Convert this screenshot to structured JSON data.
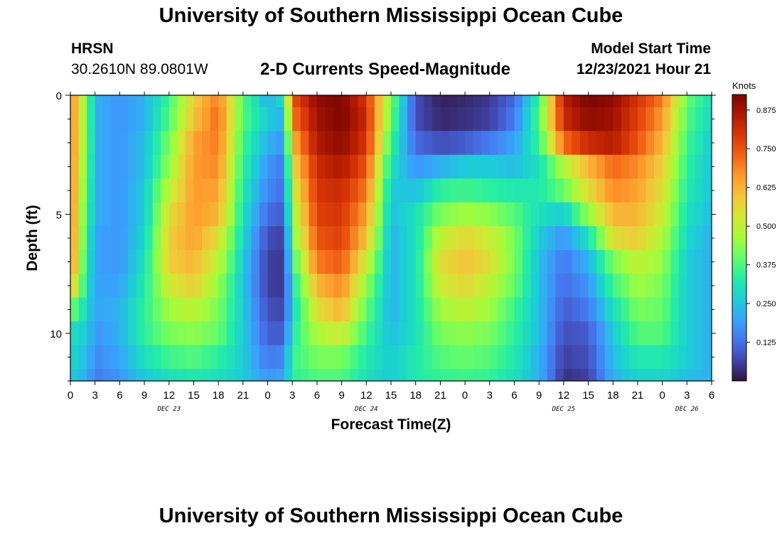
{
  "header": {
    "title": "University of Southern Mississippi Ocean Cube",
    "station": "HRSN",
    "location": "30.2610N  89.0801W",
    "plot_title": "2-D Currents Speed-Magnitude",
    "model_start_label": "Model Start Time",
    "model_start_value": "12/23/2021 Hour 21"
  },
  "footer": {
    "title_repeat": "University of Southern Mississippi Ocean Cube"
  },
  "chart_data": {
    "type": "heatmap",
    "title": "2-D Currents Speed-Magnitude",
    "xlabel": "Forecast Time(Z)",
    "ylabel": "Depth (ft)",
    "x_tick_labels": [
      "0",
      "3",
      "6",
      "9",
      "12",
      "15",
      "18",
      "21",
      "0",
      "3",
      "6",
      "9",
      "12",
      "15",
      "18",
      "21",
      "0",
      "3",
      "6",
      "9",
      "12",
      "15",
      "18",
      "21",
      "0",
      "3",
      "6"
    ],
    "day_labels": [
      {
        "label": "DEC 23",
        "hour": 12
      },
      {
        "label": "DEC 24",
        "hour": 36
      },
      {
        "label": "DEC 25",
        "hour": 60
      },
      {
        "label": "DEC 26",
        "hour": 75
      }
    ],
    "x_range_hours": [
      0,
      78
    ],
    "y_tick_labels": [
      "0",
      "5",
      "10"
    ],
    "y_tick_values": [
      0,
      5,
      10
    ],
    "ylim": [
      0,
      12
    ],
    "y_inverted": true,
    "colorbar": {
      "unit": "Knots",
      "ticks": [
        "0.875",
        "0.750",
        "0.625",
        "0.500",
        "0.375",
        "0.250",
        "0.125"
      ],
      "tick_values": [
        0.875,
        0.75,
        0.625,
        0.5,
        0.375,
        0.25,
        0.125
      ],
      "range": [
        0,
        0.925
      ],
      "colors": [
        "#30123b",
        "#4145ab",
        "#4675ed",
        "#39a2fc",
        "#1bcfd4",
        "#24eca6",
        "#61fc6c",
        "#a4fc3b",
        "#d1e834",
        "#f3c63a",
        "#fe9b2d",
        "#f36315",
        "#d93806",
        "#b11901",
        "#7a0402"
      ]
    },
    "depth_rows_ft": [
      0,
      1,
      2,
      3,
      4,
      5,
      6,
      7,
      8,
      9,
      10,
      11,
      12
    ],
    "time_nodes_hours": [
      0,
      2,
      3,
      6,
      9,
      12,
      15,
      18,
      21,
      24,
      26,
      27,
      30,
      33,
      36,
      39,
      42,
      45,
      48,
      51,
      54,
      57,
      60,
      63,
      66,
      69,
      72,
      75,
      78
    ],
    "speed_knots_by_depth": [
      [
        0.7,
        0.42,
        0.22,
        0.18,
        0.22,
        0.36,
        0.58,
        0.7,
        0.38,
        0.22,
        0.3,
        0.75,
        0.9,
        0.92,
        0.8,
        0.42,
        0.08,
        0.02,
        0.03,
        0.05,
        0.12,
        0.35,
        0.85,
        0.92,
        0.9,
        0.8,
        0.7,
        0.4,
        0.3
      ],
      [
        0.7,
        0.42,
        0.22,
        0.18,
        0.22,
        0.38,
        0.6,
        0.72,
        0.38,
        0.26,
        0.22,
        0.7,
        0.88,
        0.92,
        0.82,
        0.4,
        0.08,
        0.03,
        0.04,
        0.06,
        0.14,
        0.38,
        0.82,
        0.9,
        0.88,
        0.78,
        0.66,
        0.38,
        0.28
      ],
      [
        0.7,
        0.42,
        0.22,
        0.18,
        0.24,
        0.42,
        0.65,
        0.7,
        0.36,
        0.22,
        0.18,
        0.62,
        0.86,
        0.9,
        0.8,
        0.35,
        0.12,
        0.08,
        0.1,
        0.14,
        0.2,
        0.35,
        0.72,
        0.82,
        0.85,
        0.75,
        0.62,
        0.36,
        0.26
      ],
      [
        0.7,
        0.4,
        0.22,
        0.18,
        0.24,
        0.45,
        0.66,
        0.68,
        0.34,
        0.18,
        0.14,
        0.55,
        0.82,
        0.86,
        0.75,
        0.3,
        0.18,
        0.22,
        0.26,
        0.26,
        0.24,
        0.3,
        0.48,
        0.62,
        0.72,
        0.68,
        0.58,
        0.34,
        0.25
      ],
      [
        0.7,
        0.38,
        0.22,
        0.18,
        0.26,
        0.5,
        0.66,
        0.65,
        0.32,
        0.16,
        0.12,
        0.5,
        0.8,
        0.82,
        0.7,
        0.26,
        0.24,
        0.34,
        0.36,
        0.34,
        0.32,
        0.32,
        0.4,
        0.55,
        0.68,
        0.65,
        0.55,
        0.32,
        0.25
      ],
      [
        0.7,
        0.36,
        0.22,
        0.18,
        0.26,
        0.55,
        0.66,
        0.62,
        0.3,
        0.12,
        0.1,
        0.45,
        0.78,
        0.8,
        0.65,
        0.24,
        0.3,
        0.42,
        0.46,
        0.44,
        0.38,
        0.3,
        0.26,
        0.45,
        0.62,
        0.62,
        0.52,
        0.3,
        0.24
      ],
      [
        0.7,
        0.34,
        0.2,
        0.18,
        0.28,
        0.58,
        0.65,
        0.55,
        0.28,
        0.08,
        0.06,
        0.4,
        0.75,
        0.78,
        0.6,
        0.22,
        0.3,
        0.5,
        0.56,
        0.52,
        0.42,
        0.26,
        0.18,
        0.3,
        0.55,
        0.58,
        0.48,
        0.28,
        0.22
      ],
      [
        0.7,
        0.32,
        0.2,
        0.18,
        0.3,
        0.58,
        0.62,
        0.5,
        0.26,
        0.06,
        0.05,
        0.35,
        0.7,
        0.74,
        0.52,
        0.22,
        0.3,
        0.55,
        0.6,
        0.55,
        0.42,
        0.24,
        0.14,
        0.22,
        0.42,
        0.5,
        0.45,
        0.26,
        0.22
      ],
      [
        0.62,
        0.3,
        0.2,
        0.2,
        0.32,
        0.52,
        0.58,
        0.45,
        0.25,
        0.06,
        0.05,
        0.3,
        0.62,
        0.68,
        0.45,
        0.22,
        0.3,
        0.52,
        0.56,
        0.5,
        0.4,
        0.24,
        0.12,
        0.18,
        0.36,
        0.46,
        0.42,
        0.26,
        0.22
      ],
      [
        0.42,
        0.28,
        0.2,
        0.22,
        0.34,
        0.46,
        0.5,
        0.42,
        0.26,
        0.08,
        0.07,
        0.28,
        0.55,
        0.62,
        0.4,
        0.22,
        0.3,
        0.46,
        0.5,
        0.46,
        0.36,
        0.24,
        0.1,
        0.14,
        0.3,
        0.42,
        0.4,
        0.26,
        0.22
      ],
      [
        0.3,
        0.26,
        0.18,
        0.22,
        0.34,
        0.42,
        0.44,
        0.4,
        0.26,
        0.1,
        0.1,
        0.32,
        0.48,
        0.52,
        0.36,
        0.24,
        0.3,
        0.42,
        0.44,
        0.42,
        0.34,
        0.24,
        0.08,
        0.1,
        0.26,
        0.38,
        0.38,
        0.26,
        0.22
      ],
      [
        0.28,
        0.24,
        0.16,
        0.2,
        0.3,
        0.36,
        0.38,
        0.34,
        0.26,
        0.14,
        0.16,
        0.35,
        0.42,
        0.42,
        0.32,
        0.26,
        0.32,
        0.38,
        0.4,
        0.38,
        0.32,
        0.22,
        0.06,
        0.08,
        0.24,
        0.32,
        0.32,
        0.26,
        0.22
      ],
      [
        0.26,
        0.22,
        0.14,
        0.18,
        0.26,
        0.3,
        0.32,
        0.3,
        0.26,
        0.18,
        0.2,
        0.34,
        0.38,
        0.38,
        0.3,
        0.26,
        0.32,
        0.35,
        0.36,
        0.35,
        0.3,
        0.22,
        0.04,
        0.06,
        0.22,
        0.28,
        0.28,
        0.24,
        0.22
      ]
    ]
  }
}
